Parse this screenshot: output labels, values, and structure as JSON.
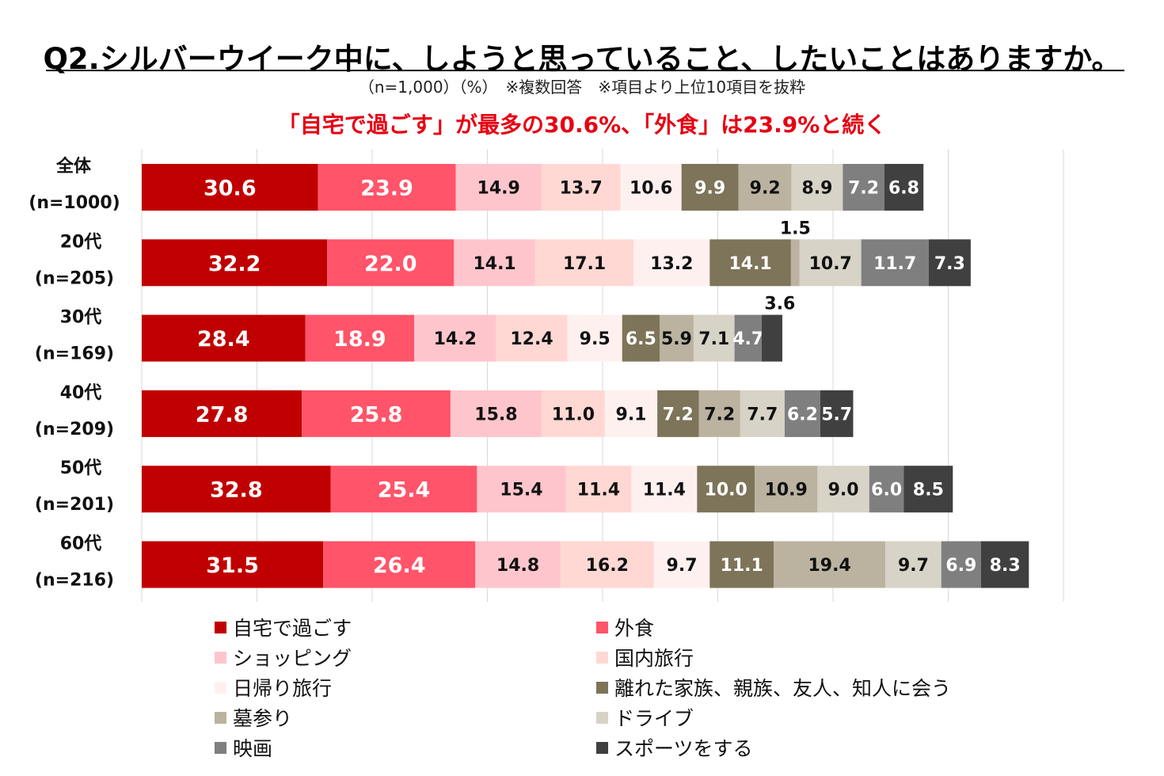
{
  "title": "Q2.シルバーウイーク中に、しようと思っていること、したいことはありますか。",
  "subtitle": "（n=1,000）（%）　※複数回答　※項目より上位10項目を抜粋",
  "headline": "「自宅で過ごす」が最多の30.6%、「外食」は23.9%と続く",
  "chart_data": {
    "type": "bar",
    "orientation": "horizontal-stacked",
    "xlim": [
      0,
      200
    ],
    "grid": true,
    "legend_position": "bottom",
    "categories": [
      {
        "label": "全体",
        "n": "(n=1000)"
      },
      {
        "label": "20代",
        "n": "(n=205)"
      },
      {
        "label": "30代",
        "n": "(n=169)"
      },
      {
        "label": "40代",
        "n": "(n=209)"
      },
      {
        "label": "50代",
        "n": "(n=201)"
      },
      {
        "label": "60代",
        "n": "(n=216)"
      }
    ],
    "series": [
      {
        "name": "自宅で過ごす",
        "color": "#c00000",
        "label_color": "#ffffff",
        "values": [
          30.6,
          32.2,
          28.4,
          27.8,
          32.8,
          31.5
        ]
      },
      {
        "name": "外食",
        "color": "#ff5469",
        "label_color": "#ffffff",
        "values": [
          23.9,
          22.0,
          18.9,
          25.8,
          25.4,
          26.4
        ]
      },
      {
        "name": "ショッピング",
        "color": "#ffc5cc",
        "label_color": "#111111",
        "values": [
          14.9,
          14.1,
          14.2,
          15.8,
          15.4,
          14.8
        ]
      },
      {
        "name": "国内旅行",
        "color": "#ffd8d4",
        "label_color": "#111111",
        "values": [
          13.7,
          17.1,
          12.4,
          11.0,
          11.4,
          16.2
        ]
      },
      {
        "name": "日帰り旅行",
        "color": "#fff0f0",
        "label_color": "#111111",
        "values": [
          10.6,
          13.2,
          9.5,
          9.1,
          11.4,
          9.7
        ]
      },
      {
        "name": "離れた家族、親族、友人、知人に会う",
        "color": "#7d7459",
        "label_color": "#ffffff",
        "values": [
          9.9,
          14.1,
          6.5,
          7.2,
          10.0,
          11.1
        ]
      },
      {
        "name": "墓参り",
        "color": "#bbb3a0",
        "label_color": "#111111",
        "values": [
          9.2,
          1.5,
          5.9,
          7.2,
          10.9,
          19.4
        ]
      },
      {
        "name": "ドライブ",
        "color": "#d8d3c7",
        "label_color": "#111111",
        "values": [
          8.9,
          10.7,
          7.1,
          7.7,
          9.0,
          9.7
        ]
      },
      {
        "name": "映画",
        "color": "#7f7f7f",
        "label_color": "#ffffff",
        "values": [
          7.2,
          11.7,
          4.7,
          6.2,
          6.0,
          6.9
        ]
      },
      {
        "name": "スポーツをする",
        "color": "#404040",
        "label_color": "#ffffff",
        "values": [
          6.8,
          7.3,
          3.6,
          5.7,
          8.5,
          8.3
        ]
      }
    ]
  }
}
